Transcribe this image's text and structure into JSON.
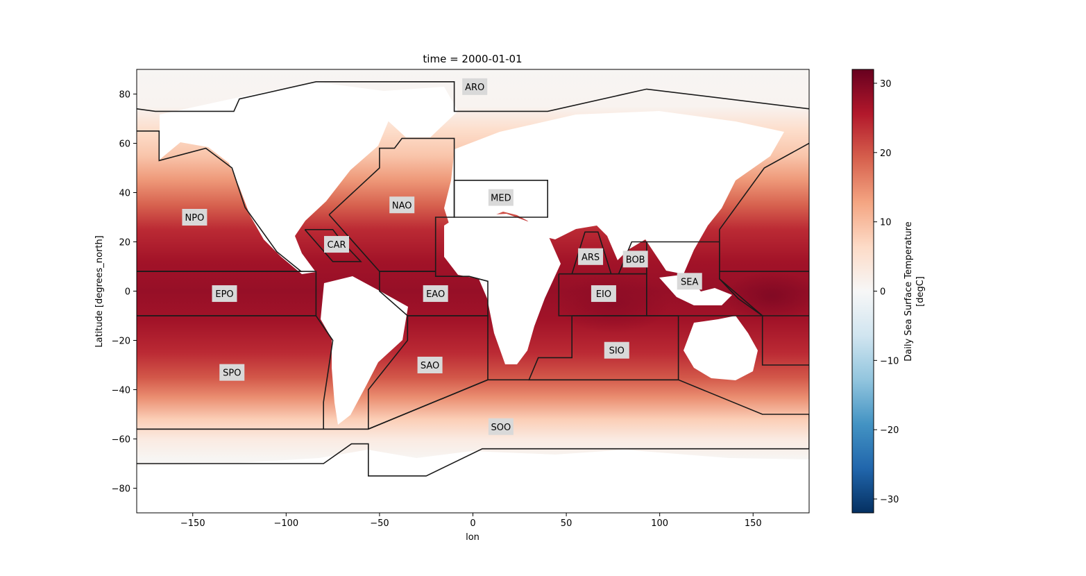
{
  "chart_data": {
    "type": "heatmap",
    "title": "time = 2000-01-01",
    "xlabel": "lon",
    "ylabel": "Latitude [degrees_north]",
    "xlim": [
      -180,
      180
    ],
    "ylim": [
      -90,
      90
    ],
    "x_ticks": [
      {
        "value": -150,
        "label": "−150"
      },
      {
        "value": -100,
        "label": "−100"
      },
      {
        "value": -50,
        "label": "−50"
      },
      {
        "value": 0,
        "label": "0"
      },
      {
        "value": 50,
        "label": "50"
      },
      {
        "value": 100,
        "label": "100"
      },
      {
        "value": 150,
        "label": "150"
      }
    ],
    "y_ticks": [
      {
        "value": 80,
        "label": "80"
      },
      {
        "value": 60,
        "label": "60"
      },
      {
        "value": 40,
        "label": "40"
      },
      {
        "value": 20,
        "label": "20"
      },
      {
        "value": 0,
        "label": "0"
      },
      {
        "value": -20,
        "label": "−20"
      },
      {
        "value": -40,
        "label": "−40"
      },
      {
        "value": -60,
        "label": "−60"
      },
      {
        "value": -80,
        "label": "−80"
      }
    ],
    "colorbar": {
      "label_line1": "Daily Sea Surface Temperature",
      "label_line2": "[degC]",
      "colormap": "RdBu_r",
      "vmin": -32,
      "vmax": 32,
      "ticks": [
        {
          "value": 30,
          "label": "30"
        },
        {
          "value": 20,
          "label": "20"
        },
        {
          "value": 10,
          "label": "10"
        },
        {
          "value": 0,
          "label": "0"
        },
        {
          "value": -10,
          "label": "−10"
        },
        {
          "value": -20,
          "label": "−20"
        },
        {
          "value": -30,
          "label": "−30"
        }
      ],
      "stops": [
        "#053061",
        "#2166ac",
        "#4393c3",
        "#92c5de",
        "#d1e5f0",
        "#f7f7f7",
        "#fddbc7",
        "#f4a582",
        "#d6604d",
        "#b2182b",
        "#67001f"
      ]
    },
    "sst_bands": [
      {
        "lat": 90,
        "sst": 0.5
      },
      {
        "lat": 75,
        "sst": 1
      },
      {
        "lat": 65,
        "sst": 6
      },
      {
        "lat": 55,
        "sst": 9
      },
      {
        "lat": 45,
        "sst": 14
      },
      {
        "lat": 35,
        "sst": 19
      },
      {
        "lat": 25,
        "sst": 24
      },
      {
        "lat": 12,
        "sst": 27
      },
      {
        "lat": 0,
        "sst": 28
      },
      {
        "lat": -12,
        "sst": 27
      },
      {
        "lat": -25,
        "sst": 24
      },
      {
        "lat": -35,
        "sst": 20
      },
      {
        "lat": -43,
        "sst": 15
      },
      {
        "lat": -52,
        "sst": 8
      },
      {
        "lat": -60,
        "sst": 3
      },
      {
        "lat": -68,
        "sst": 0.5
      },
      {
        "lat": -90,
        "sst": 0
      }
    ],
    "warm_pools": [
      {
        "name": "west-pacific",
        "lon": 160,
        "lat": -2,
        "rlon": 25,
        "rlat": 10,
        "sst": 30
      },
      {
        "name": "indian",
        "lon": 75,
        "lat": -5,
        "rlon": 30,
        "rlat": 12,
        "sst": 29
      }
    ],
    "regions": [
      {
        "label": "ARO",
        "lon": 1,
        "lat": 83,
        "outline": [
          [
            -180,
            74
          ],
          [
            -170,
            73
          ],
          [
            -128,
            73
          ],
          [
            -125,
            78
          ],
          [
            -84,
            85
          ],
          [
            -10,
            85
          ],
          [
            -10,
            73
          ],
          [
            40,
            73
          ],
          [
            93,
            82
          ],
          [
            180,
            74
          ]
        ]
      },
      {
        "label": "NPO",
        "lon": -149,
        "lat": 30,
        "outline": [
          [
            -180,
            65
          ],
          [
            -168,
            65
          ],
          [
            -168,
            53
          ],
          [
            -143,
            58
          ],
          [
            -129,
            50
          ],
          [
            -122,
            34
          ],
          [
            -105,
            16
          ],
          [
            -92,
            8
          ],
          [
            -180,
            8
          ]
        ]
      },
      {
        "label": "NAO",
        "lon": -38,
        "lat": 35,
        "outline": [
          [
            -77,
            31
          ],
          [
            -50,
            50
          ],
          [
            -50,
            58
          ],
          [
            -42,
            58
          ],
          [
            -38,
            62
          ],
          [
            -10,
            62
          ],
          [
            -10,
            30
          ],
          [
            -20,
            30
          ],
          [
            -20,
            8
          ],
          [
            -50,
            8
          ],
          [
            -77,
            31
          ]
        ]
      },
      {
        "label": "MED",
        "lon": 15,
        "lat": 38,
        "outline": [
          [
            -10,
            45
          ],
          [
            40,
            45
          ],
          [
            40,
            30
          ],
          [
            -10,
            30
          ],
          [
            -10,
            45
          ]
        ]
      },
      {
        "label": "CAR",
        "lon": -73,
        "lat": 19,
        "outline": [
          [
            -90,
            25
          ],
          [
            -75,
            25
          ],
          [
            -70,
            20
          ],
          [
            -60,
            12
          ],
          [
            -75,
            12
          ],
          [
            -90,
            25
          ]
        ]
      },
      {
        "label": "EPO",
        "lon": -133,
        "lat": -1,
        "outline": [
          [
            -180,
            8
          ],
          [
            -84,
            8
          ],
          [
            -84,
            -10
          ],
          [
            -180,
            -10
          ]
        ]
      },
      {
        "label": "EAO",
        "lon": -20,
        "lat": -1,
        "outline": [
          [
            -50,
            8
          ],
          [
            -20,
            8
          ],
          [
            -20,
            6
          ],
          [
            -2,
            6
          ],
          [
            8,
            4
          ],
          [
            8,
            -10
          ],
          [
            -35,
            -10
          ],
          [
            -50,
            0
          ],
          [
            -50,
            8
          ]
        ]
      },
      {
        "label": "SPO",
        "lon": -129,
        "lat": -33,
        "outline": [
          [
            -180,
            -56
          ],
          [
            -56,
            -56
          ],
          [
            -80,
            -56
          ],
          [
            -80,
            -45
          ],
          [
            -75,
            -20
          ],
          [
            -84,
            -10
          ],
          [
            -180,
            -10
          ]
        ]
      },
      {
        "label": "SAO",
        "lon": -23,
        "lat": -30,
        "outline": [
          [
            -56,
            -56
          ],
          [
            -56,
            -40
          ],
          [
            -35,
            -20
          ],
          [
            -35,
            -10
          ],
          [
            8,
            -10
          ],
          [
            8,
            -36
          ],
          [
            -56,
            -56
          ]
        ]
      },
      {
        "label": "SOO",
        "lon": 15,
        "lat": -55,
        "outline": [
          [
            -180,
            -56
          ],
          [
            -56,
            -56
          ],
          [
            8,
            -36
          ],
          [
            30,
            -36
          ],
          [
            110,
            -36
          ],
          [
            155,
            -50
          ],
          [
            180,
            -50
          ],
          [
            180,
            -64
          ],
          [
            5,
            -64
          ],
          [
            -25,
            -75
          ],
          [
            -56,
            -75
          ],
          [
            -56,
            -62
          ],
          [
            -65,
            -62
          ],
          [
            -80,
            -70
          ],
          [
            -180,
            -70
          ]
        ]
      },
      {
        "label": "ARS",
        "lon": 63,
        "lat": 14,
        "outline": [
          [
            53,
            7
          ],
          [
            60,
            24
          ],
          [
            67,
            24
          ],
          [
            74,
            7
          ],
          [
            53,
            7
          ]
        ]
      },
      {
        "label": "BOB",
        "lon": 87,
        "lat": 13,
        "outline": [
          [
            78,
            7
          ],
          [
            85,
            20
          ],
          [
            93,
            20
          ],
          [
            93,
            7
          ],
          [
            78,
            7
          ]
        ]
      },
      {
        "label": "EIO",
        "lon": 70,
        "lat": -1,
        "outline": [
          [
            46,
            7
          ],
          [
            93,
            7
          ],
          [
            93,
            -10
          ],
          [
            46,
            -10
          ],
          [
            46,
            7
          ]
        ]
      },
      {
        "label": "SEA",
        "lon": 116,
        "lat": 4,
        "outline": [
          [
            93,
            20
          ],
          [
            132,
            20
          ],
          [
            132,
            5
          ],
          [
            155,
            -10
          ],
          [
            110,
            -10
          ],
          [
            93,
            -10
          ],
          [
            93,
            20
          ]
        ]
      },
      {
        "label": "SIO",
        "lon": 77,
        "lat": -24,
        "outline": [
          [
            53,
            -10
          ],
          [
            110,
            -10
          ],
          [
            110,
            -36
          ],
          [
            30,
            -36
          ],
          [
            35,
            -27
          ],
          [
            53,
            -27
          ],
          [
            53,
            -10
          ]
        ]
      }
    ],
    "extra_lines": [
      [
        [
          132,
          25
        ],
        [
          132,
          5
        ],
        [
          142,
          -3
        ],
        [
          155,
          -10
        ],
        [
          155,
          -30
        ],
        [
          180,
          -30
        ]
      ],
      [
        [
          132,
          25
        ],
        [
          156,
          50
        ],
        [
          180,
          60
        ]
      ],
      [
        [
          132,
          8
        ],
        [
          180,
          8
        ]
      ],
      [
        [
          155,
          -10
        ],
        [
          180,
          -10
        ]
      ]
    ]
  }
}
